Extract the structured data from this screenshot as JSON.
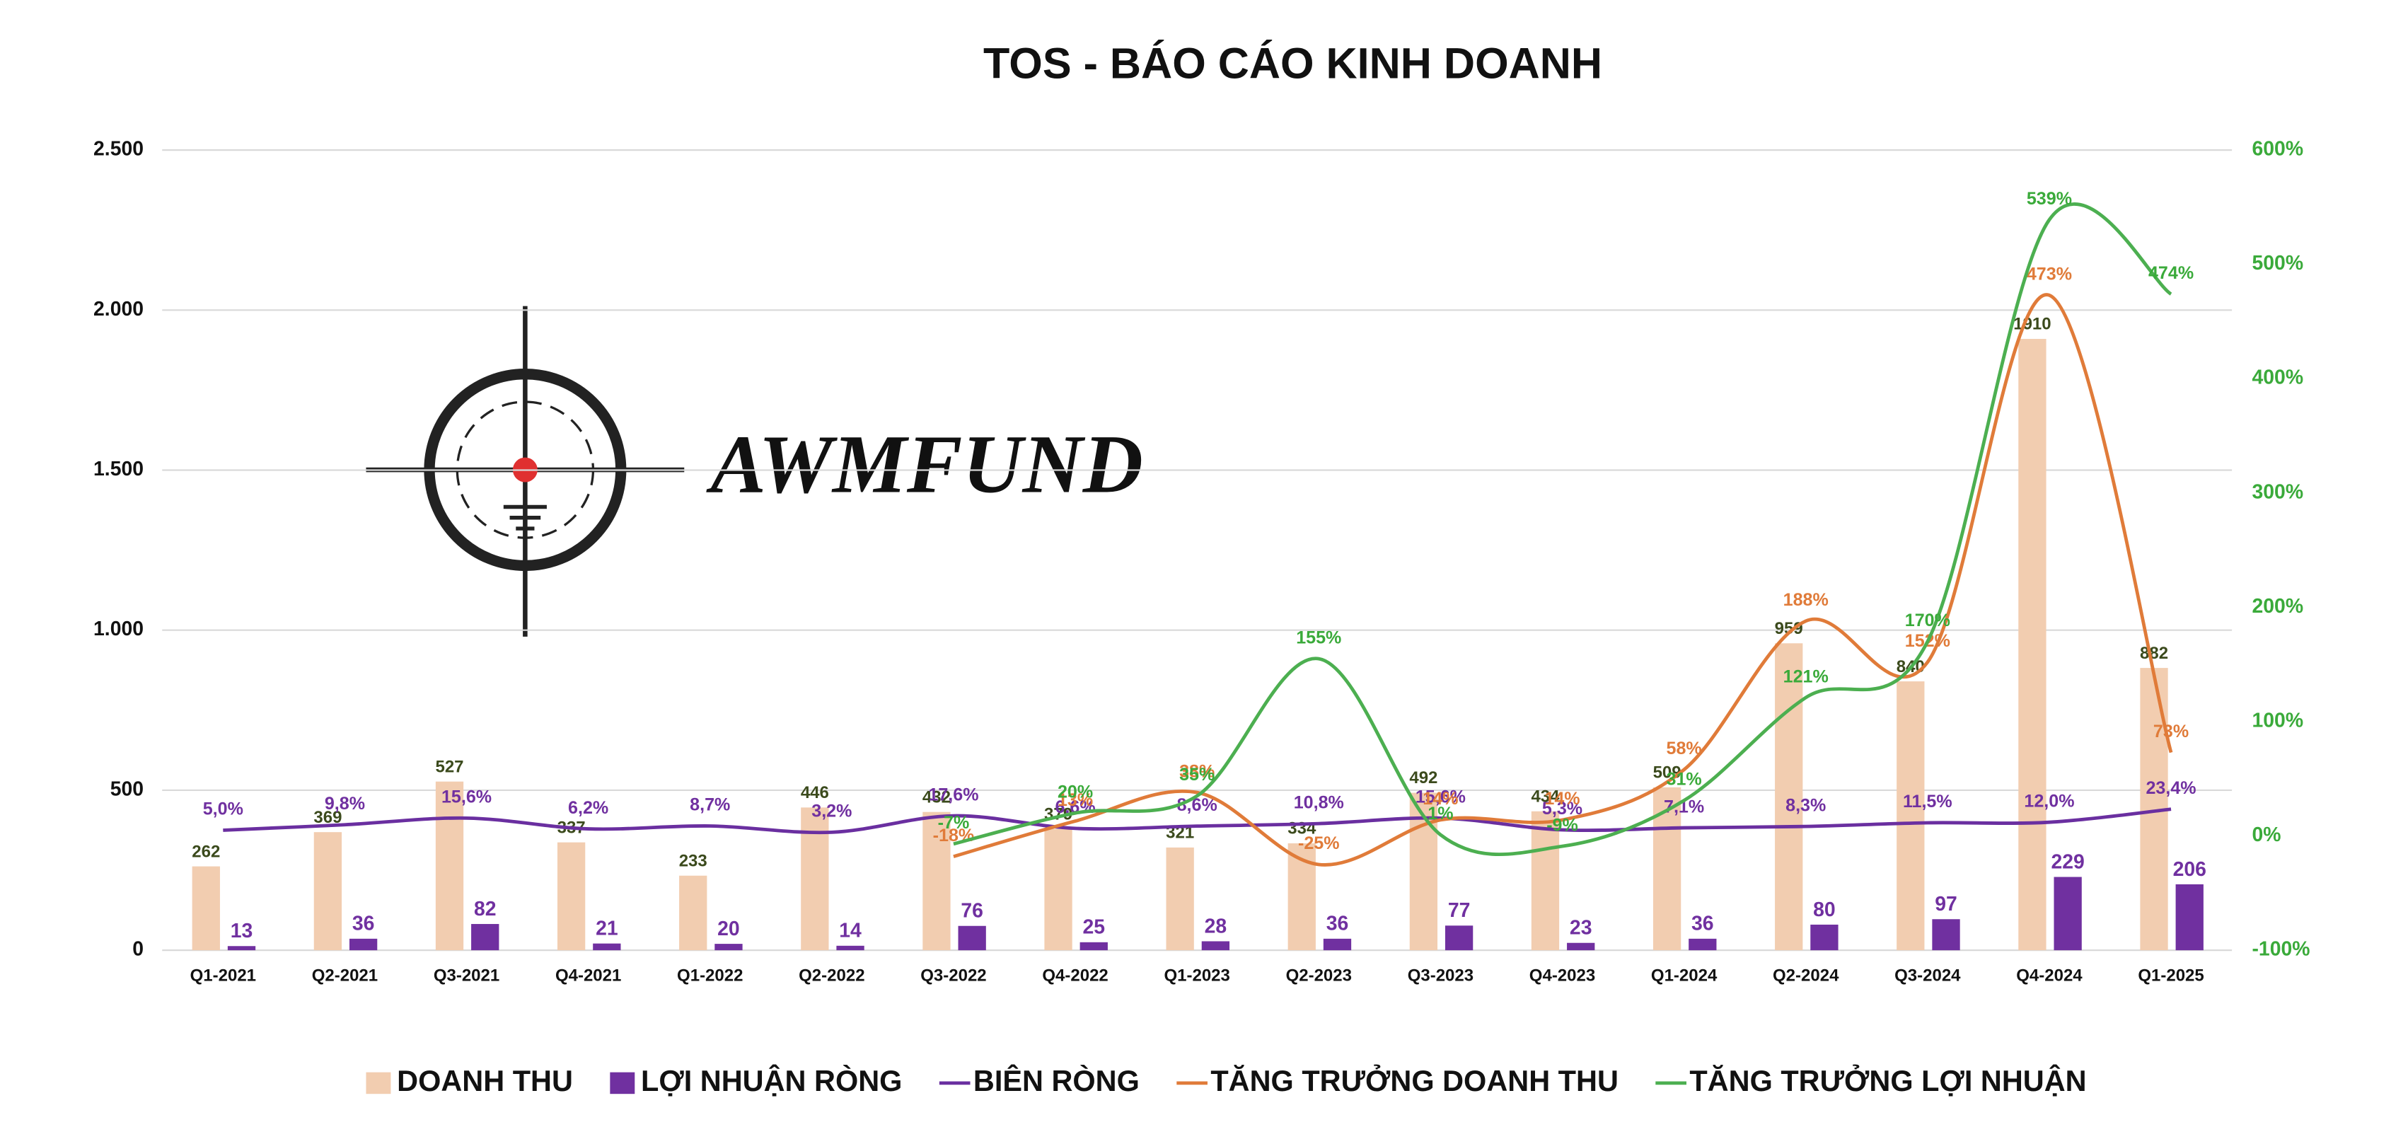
{
  "chart_data": {
    "type": "bar",
    "title": "TOS - BÁO CÁO KINH DOANH",
    "logo_text": "AWMFUND",
    "categories": [
      "Q1-2021",
      "Q2-2021",
      "Q3-2021",
      "Q4-2021",
      "Q1-2022",
      "Q2-2022",
      "Q3-2022",
      "Q4-2022",
      "Q1-2023",
      "Q2-2023",
      "Q3-2023",
      "Q4-2023",
      "Q1-2024",
      "Q2-2024",
      "Q3-2024",
      "Q4-2024",
      "Q1-2025"
    ],
    "series": [
      {
        "name": "DOANH THU",
        "type": "bar",
        "color": "#f2cdb0",
        "label_color": "#3b4a1c",
        "values": [
          262,
          369,
          527,
          337,
          233,
          446,
          432,
          379,
          321,
          334,
          492,
          434,
          509,
          959,
          840,
          1910,
          882
        ]
      },
      {
        "name": "LỢI NHUẬN RÒNG",
        "type": "bar",
        "color": "#7030a0",
        "label_color": "#7030a0",
        "values": [
          13,
          36,
          82,
          21,
          20,
          14,
          76,
          25,
          28,
          36,
          77,
          23,
          36,
          80,
          97,
          229,
          206
        ]
      },
      {
        "name": "BIÊN RÒNG",
        "type": "line",
        "axis": "y2",
        "color": "#6a2fa0",
        "label_color": "#7030a0",
        "values": [
          5.0,
          9.8,
          15.6,
          6.2,
          8.7,
          3.2,
          17.6,
          6.6,
          8.6,
          10.8,
          15.6,
          5.3,
          7.1,
          8.3,
          11.5,
          12.0,
          23.4
        ],
        "value_labels": [
          "5,0%",
          "9,8%",
          "15,6%",
          "6,2%",
          "8,7%",
          "3,2%",
          "17,6%",
          "6,6%",
          "8,6%",
          "10,8%",
          "15,6%",
          "5,3%",
          "7,1%",
          "8,3%",
          "11,5%",
          "12,0%",
          "23,4%"
        ]
      },
      {
        "name": "TĂNG TRƯỞNG DOANH THU",
        "type": "line",
        "axis": "y2",
        "color": "#e07b39",
        "label_color": "#e07b39",
        "values": [
          null,
          null,
          null,
          null,
          null,
          null,
          -18,
          13,
          38,
          -25,
          14,
          14,
          58,
          188,
          152,
          473,
          73
        ],
        "value_labels": [
          null,
          null,
          null,
          null,
          null,
          null,
          "-18%",
          "13%",
          "38%",
          "-25%",
          "14%",
          "14%",
          "58%",
          "188%",
          "152%",
          "473%",
          "73%"
        ]
      },
      {
        "name": "TĂNG TRƯỞNG LỢI NHUẬN",
        "type": "line",
        "axis": "y2",
        "color": "#4caf50",
        "label_color": "#3aaa3a",
        "values": [
          null,
          null,
          null,
          null,
          null,
          null,
          -7,
          20,
          35,
          155,
          1,
          -9,
          31,
          121,
          170,
          539,
          474
        ],
        "value_labels": [
          null,
          null,
          null,
          null,
          null,
          null,
          "-7%",
          "20%",
          "35%",
          "155%",
          "1%",
          "-9%",
          "31%",
          "121%",
          "170%",
          "539%",
          "474%"
        ]
      }
    ],
    "ylim": [
      0,
      2500
    ],
    "yticks": [
      0,
      500,
      {
        "value": 1000,
        "label": "1.000"
      },
      {
        "value": 1500,
        "label": "1.500"
      },
      {
        "value": 2000,
        "label": "2.000"
      },
      {
        "value": 2500,
        "label": "2.500"
      }
    ],
    "y2lim": [
      -100,
      600
    ],
    "y2ticks": [
      {
        "value": -100,
        "label": "-100%"
      },
      {
        "value": 0,
        "label": "0%"
      },
      {
        "value": 100,
        "label": "100%"
      },
      {
        "value": 200,
        "label": "200%"
      },
      {
        "value": 300,
        "label": "300%"
      },
      {
        "value": 400,
        "label": "400%"
      },
      {
        "value": 500,
        "label": "500%"
      },
      {
        "value": 600,
        "label": "600%"
      }
    ],
    "y2_color": "#3aaa3a",
    "grid": true,
    "legend": "bottom"
  }
}
